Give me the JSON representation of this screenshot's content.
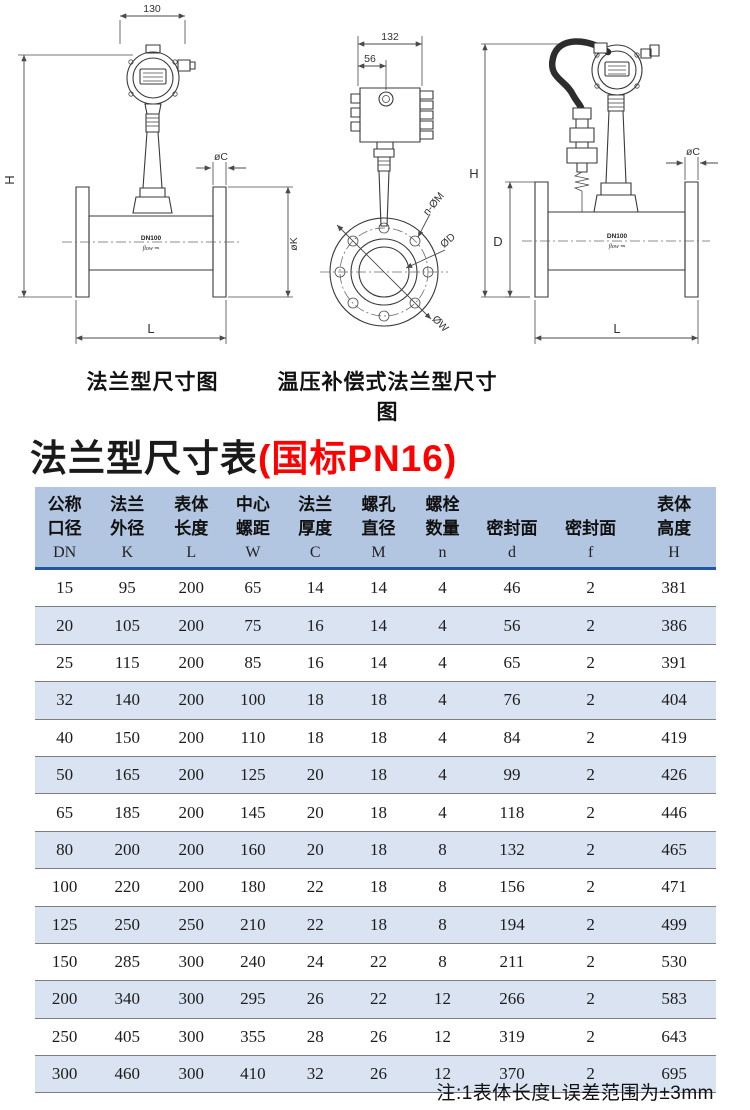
{
  "colors": {
    "accent_red": "#fe0000",
    "table_header_bg": "#b3c6e1",
    "table_band_bg": "#dae3f2",
    "header_rule_blue": "#2257a4"
  },
  "diagrams": {
    "left": {
      "caption": "法兰型尺寸图",
      "dim_width": "130",
      "dim_height": "H",
      "dim_flange_thickness": "øC",
      "dim_flange_diameter": "øK",
      "dim_length": "L",
      "body_label": "DN100",
      "flow_label": "flow ⇒"
    },
    "middle": {
      "dim_width": "132",
      "dim_offset": "56",
      "dim_bolt_holes": "n-ØM",
      "dim_inner_diameter": "ØD",
      "dim_outer_diameter": "ØW"
    },
    "right": {
      "caption": "温压补偿式法兰型尺寸图",
      "dim_height": "H",
      "dim_body_diameter": "D",
      "dim_flange_thickness": "øC",
      "dim_length": "L",
      "body_label": "DN100",
      "flow_label": "flow ⇒"
    }
  },
  "table": {
    "title": "法兰型尺寸表",
    "title_highlight": "(国标PN16)",
    "columns": [
      {
        "line1": "公称",
        "line2": "口径",
        "symbol": "DN"
      },
      {
        "line1": "法兰",
        "line2": "外径",
        "symbol": "K"
      },
      {
        "line1": "表体",
        "line2": "长度",
        "symbol": "L"
      },
      {
        "line1": "中心",
        "line2": "螺距",
        "symbol": "W"
      },
      {
        "line1": "法兰",
        "line2": "厚度",
        "symbol": "C"
      },
      {
        "line1": "螺孔",
        "line2": "直径",
        "symbol": "M"
      },
      {
        "line1": "螺栓",
        "line2": "数量",
        "symbol": "n"
      },
      {
        "line1": "",
        "line2": "密封面",
        "symbol": "d"
      },
      {
        "line1": "",
        "line2": "密封面",
        "symbol": "f"
      },
      {
        "line1": "表体",
        "line2": "高度",
        "symbol": "H"
      }
    ],
    "rows": [
      [
        "15",
        "95",
        "200",
        "65",
        "14",
        "14",
        "4",
        "46",
        "2",
        "381"
      ],
      [
        "20",
        "105",
        "200",
        "75",
        "16",
        "14",
        "4",
        "56",
        "2",
        "386"
      ],
      [
        "25",
        "115",
        "200",
        "85",
        "16",
        "14",
        "4",
        "65",
        "2",
        "391"
      ],
      [
        "32",
        "140",
        "200",
        "100",
        "18",
        "18",
        "4",
        "76",
        "2",
        "404"
      ],
      [
        "40",
        "150",
        "200",
        "110",
        "18",
        "18",
        "4",
        "84",
        "2",
        "419"
      ],
      [
        "50",
        "165",
        "200",
        "125",
        "20",
        "18",
        "4",
        "99",
        "2",
        "426"
      ],
      [
        "65",
        "185",
        "200",
        "145",
        "20",
        "18",
        "4",
        "118",
        "2",
        "446"
      ],
      [
        "80",
        "200",
        "200",
        "160",
        "20",
        "18",
        "8",
        "132",
        "2",
        "465"
      ],
      [
        "100",
        "220",
        "200",
        "180",
        "22",
        "18",
        "8",
        "156",
        "2",
        "471"
      ],
      [
        "125",
        "250",
        "250",
        "210",
        "22",
        "18",
        "8",
        "194",
        "2",
        "499"
      ],
      [
        "150",
        "285",
        "300",
        "240",
        "24",
        "22",
        "8",
        "211",
        "2",
        "530"
      ],
      [
        "200",
        "340",
        "300",
        "295",
        "26",
        "22",
        "12",
        "266",
        "2",
        "583"
      ],
      [
        "250",
        "405",
        "300",
        "355",
        "28",
        "26",
        "12",
        "319",
        "2",
        "643"
      ],
      [
        "300",
        "460",
        "300",
        "410",
        "32",
        "26",
        "12",
        "370",
        "2",
        "695"
      ]
    ],
    "note": "注:1表体长度L误差范围为±3mm"
  }
}
